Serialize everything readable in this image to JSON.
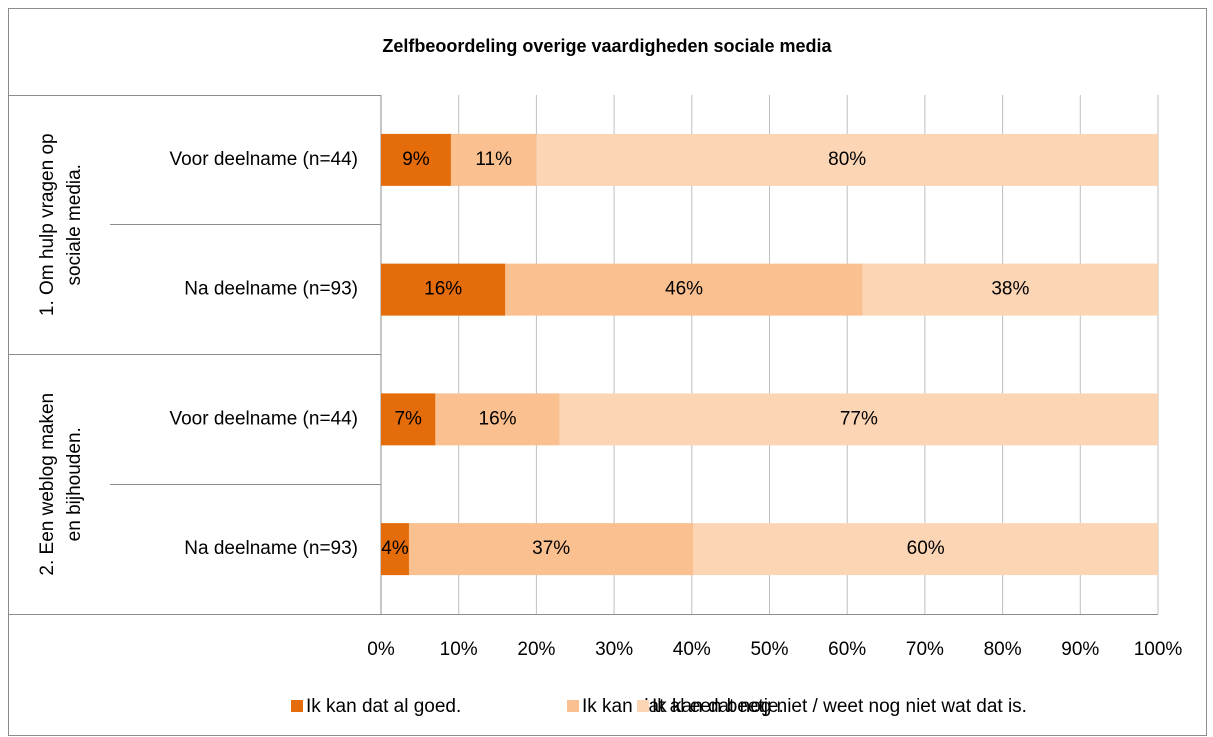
{
  "chart_data": {
    "type": "bar",
    "orientation": "horizontal",
    "stacked": true,
    "title": "Zelfbeoordeling overige vaardigheden sociale media",
    "groups": [
      [
        "1. Om hulp vragen op",
        "sociale media."
      ],
      [
        "2. Een weblog maken",
        "en bijhouden."
      ]
    ],
    "categories": [
      "Voor deelname (n=44)",
      "Na deelname (n=93)",
      "Voor deelname (n=44)",
      "Na deelname (n=93)"
    ],
    "series": [
      {
        "name": "Ik kan dat al goed.",
        "color": "#e46c0a",
        "values": [
          9,
          16,
          7,
          3.6
        ],
        "value_labels": [
          "9%",
          "16%",
          "7%",
          "4%"
        ]
      },
      {
        "name": "Ik kan dat al een beetje.",
        "color": "#fac090",
        "values": [
          11,
          46,
          16,
          36.6
        ],
        "value_labels": [
          "11%",
          "46%",
          "16%",
          "37%"
        ]
      },
      {
        "name": "Ik kan dat nog niet / weet nog niet wat dat is.",
        "color": "#fcd5b5",
        "values": [
          80,
          38,
          77,
          59.8
        ],
        "value_labels": [
          "80%",
          "38%",
          "77%",
          "60%"
        ]
      }
    ],
    "xlim": [
      0,
      100
    ],
    "xticks": [
      {
        "value": 0,
        "label": "0%"
      },
      {
        "value": 10,
        "label": "10%"
      },
      {
        "value": 20,
        "label": "20%"
      },
      {
        "value": 30,
        "label": "30%"
      },
      {
        "value": 40,
        "label": "40%"
      },
      {
        "value": 50,
        "label": "50%"
      },
      {
        "value": 60,
        "label": "60%"
      },
      {
        "value": 70,
        "label": "70%"
      },
      {
        "value": 80,
        "label": "80%"
      },
      {
        "value": 90,
        "label": "90%"
      },
      {
        "value": 100,
        "label": "100%"
      }
    ],
    "grid": true,
    "legend": "bottom"
  }
}
